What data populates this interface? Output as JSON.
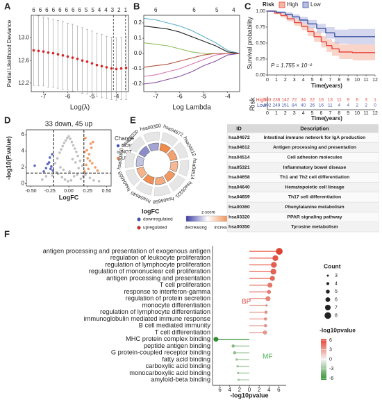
{
  "chart_data": [
    {
      "panel": "A",
      "type": "errorbar_line",
      "xlabel": "Log(λ)",
      "ylabel": "Partial Likelihood Deviance",
      "xlim": [
        -7.5,
        -3.5
      ],
      "xticks": [
        -7,
        -6,
        -5,
        -4
      ],
      "ylim": [
        12.05,
        13.4
      ],
      "yticks": [
        12.2,
        12.6,
        {
          "value": 13,
          "label": "13.0"
        }
      ],
      "top_ticks": {
        "x": [
          -7.4,
          -7.13,
          -6.86,
          -6.59,
          -6.32,
          -6.05,
          -5.78,
          -5.51,
          -5.24,
          -4.97,
          -4.7,
          -4.43,
          -4.16,
          -3.89,
          -3.62
        ],
        "labels": [
          6,
          6,
          6,
          6,
          6,
          6,
          6,
          6,
          5,
          5,
          4,
          4,
          3,
          2,
          1
        ]
      },
      "vlines": [
        -4.12,
        -3.62
      ],
      "x": [
        -7.4,
        -7.2,
        -7.0,
        -6.8,
        -6.6,
        -6.4,
        -6.2,
        -6.0,
        -5.8,
        -5.6,
        -5.4,
        -5.2,
        -5.0,
        -4.8,
        -4.6,
        -4.4,
        -4.2,
        -4.0,
        -3.8,
        -3.6
      ],
      "values": [
        12.78,
        12.77,
        12.76,
        12.74,
        12.73,
        12.71,
        12.69,
        12.67,
        12.65,
        12.63,
        12.6,
        12.58,
        12.55,
        12.52,
        12.5,
        12.48,
        12.46,
        12.45,
        12.46,
        12.47
      ],
      "errors": [
        0.62,
        0.62,
        0.61,
        0.61,
        0.6,
        0.6,
        0.6,
        0.59,
        0.59,
        0.58,
        0.58,
        0.57,
        0.57,
        0.56,
        0.56,
        0.55,
        0.55,
        0.55,
        0.55,
        0.56
      ],
      "color": "#d62728"
    },
    {
      "panel": "B",
      "type": "line",
      "xlabel": "Log Lambda",
      "xlim": [
        -7.5,
        -3.5
      ],
      "xticks": [
        -7,
        -6,
        -5,
        -4
      ],
      "ylim": [
        -0.25,
        0.25
      ],
      "yticks": [
        -0.2,
        -0.1,
        {
          "value": 0,
          "label": "0.0"
        },
        0.1,
        0.2
      ],
      "top_ticks": {
        "x": [
          -7,
          -5.4,
          -4.45,
          -3.75
        ],
        "labels": [
          6,
          6,
          5,
          4
        ]
      },
      "x": [
        -7.5,
        -7,
        -6.5,
        -6,
        -5.5,
        -5,
        -4.5,
        -4,
        -3.5
      ],
      "series": [
        {
          "color": "#5fb0c8",
          "values": [
            0.23,
            0.22,
            0.2,
            0.18,
            0.15,
            0.11,
            0.07,
            0.02,
            0
          ]
        },
        {
          "color": "#222222",
          "values": [
            0.18,
            0.17,
            0.16,
            0.14,
            0.11,
            0.08,
            0.05,
            0.01,
            0
          ]
        },
        {
          "color": "#8fbf5a",
          "values": [
            0.07,
            0.06,
            0.05,
            0.03,
            0.01,
            0,
            0,
            0,
            0
          ]
        },
        {
          "color": "#8a4fa0",
          "values": [
            -0.2,
            -0.19,
            -0.17,
            -0.15,
            -0.12,
            -0.08,
            -0.05,
            -0.01,
            0
          ]
        },
        {
          "color": "#d677b0",
          "values": [
            -0.15,
            -0.14,
            -0.12,
            -0.1,
            -0.07,
            -0.04,
            -0.01,
            0,
            0
          ]
        },
        {
          "color": "#b5533c",
          "values": [
            -0.09,
            -0.08,
            -0.07,
            -0.05,
            -0.03,
            -0.01,
            0,
            0,
            0
          ]
        }
      ]
    },
    {
      "panel": "C",
      "type": "survival",
      "legend_title": "Risk",
      "ylabel": "Survival probability",
      "xlabel": "Time(years)",
      "xlim": [
        0,
        12
      ],
      "xticks": [
        0,
        1,
        2,
        3,
        4,
        5,
        6,
        7,
        8,
        9,
        10,
        11,
        12
      ],
      "ylim": [
        0,
        1
      ],
      "yticks": [
        {
          "value": 0,
          "label": "0.00"
        },
        {
          "value": 0.25,
          "label": "0.25"
        },
        {
          "value": 0.5,
          "label": "0.50"
        },
        {
          "value": 0.75,
          "label": "0.75"
        },
        {
          "value": 1,
          "label": "1.00"
        }
      ],
      "annotation": "P = 1.755 × 10⁻²",
      "series": [
        {
          "name": "High",
          "color": "#e8453c",
          "band_color": "#f5b8a5",
          "x": [
            0,
            0.8,
            1.5,
            2.2,
            3,
            3.8,
            4.5,
            5.2,
            6,
            6.6,
            7.2,
            8,
            9.5
          ],
          "values": [
            1,
            0.97,
            0.93,
            0.88,
            0.82,
            0.76,
            0.68,
            0.6,
            0.52,
            0.46,
            0.41,
            0.36,
            0.35
          ],
          "lower": [
            1,
            0.95,
            0.9,
            0.84,
            0.77,
            0.7,
            0.61,
            0.52,
            0.43,
            0.36,
            0.3,
            0.25,
            0.23
          ],
          "upper": [
            1,
            0.99,
            0.96,
            0.92,
            0.87,
            0.82,
            0.75,
            0.68,
            0.61,
            0.56,
            0.52,
            0.48,
            0.48
          ]
        },
        {
          "name": "Low",
          "color": "#3b53a3",
          "band_color": "#b7bde3",
          "x": [
            0,
            1,
            2,
            2.8,
            3.6,
            4.5,
            5.5,
            6.5,
            7.5,
            9
          ],
          "values": [
            1,
            0.98,
            0.95,
            0.91,
            0.86,
            0.8,
            0.73,
            0.66,
            0.6,
            0.6
          ],
          "lower": [
            1,
            0.96,
            0.92,
            0.87,
            0.81,
            0.74,
            0.66,
            0.57,
            0.49,
            0.48
          ],
          "upper": [
            1,
            1,
            0.98,
            0.95,
            0.91,
            0.86,
            0.8,
            0.75,
            0.71,
            0.72
          ]
        }
      ],
      "risk_table": {
        "title": "Risk",
        "xlabel": "Time(years)",
        "rows": [
          {
            "name": "High",
            "values": [
              303,
              236,
              142,
              72,
              34,
              22,
              16,
              13,
              11,
              9,
              6,
              3,
              1
            ]
          },
          {
            "name": "Low",
            "values": [
              302,
              249,
              151,
              84,
              40,
              26,
              16,
              11,
              4,
              4,
              2,
              2,
              0
            ]
          }
        ]
      }
    },
    {
      "panel": "D",
      "type": "scatter",
      "title": "33 down, 45 up",
      "xlabel": "LogFC",
      "ylabel": "-log10(P.value)",
      "xlim": [
        -0.56,
        0.56
      ],
      "xticks": [
        {
          "value": -0.5,
          "label": "-0.50"
        },
        {
          "value": -0.25,
          "label": "-0.25"
        },
        {
          "value": 0,
          "label": "0.00"
        },
        {
          "value": 0.25,
          "label": "0.25"
        },
        {
          "value": 0.5,
          "label": "0.50"
        }
      ],
      "ylim": [
        -0.3,
        6.6
      ],
      "yticks": [
        0,
        2,
        4,
        6
      ],
      "thresholds": {
        "x": [
          -0.2,
          0.2
        ],
        "y": 1.3
      },
      "legend_title": "Change",
      "series": [
        {
          "name": "DOWN",
          "color": "#3f51b5",
          "x": [
            -0.21,
            -0.23,
            -0.26,
            -0.3,
            -0.25,
            -0.22,
            -0.33,
            -0.28,
            -0.45,
            -0.24
          ],
          "values": [
            1.6,
            2.1,
            2.6,
            1.9,
            3.2,
            3.6,
            1.5,
            2.4,
            2.2,
            1.8
          ]
        },
        {
          "name": "NOT",
          "color": "#b5b5b5",
          "x": [
            -0.18,
            -0.15,
            -0.12,
            -0.1,
            -0.08,
            -0.06,
            -0.04,
            -0.02,
            0,
            0.02,
            0.04,
            0.06,
            0.08,
            0.1,
            0.12,
            0.15,
            0.18,
            -0.14,
            -0.09,
            -0.05,
            -0.01,
            0.03,
            0.07,
            0.11,
            0.16,
            -0.3,
            -0.35,
            0.28,
            0.33,
            0.4,
            -0.22,
            0.22,
            -0.11,
            0.05,
            0.09,
            -0.07,
            0.01,
            0.13,
            -0.16,
            0.19
          ],
          "values": [
            2.5,
            3.1,
            3.8,
            4.2,
            4.6,
            5.0,
            5.3,
            5.6,
            5.8,
            5.5,
            5.1,
            4.7,
            4.3,
            3.9,
            3.4,
            2.8,
            2.2,
            1.2,
            0.8,
            0.5,
            0.3,
            0.4,
            0.9,
            1.1,
            0.6,
            0.9,
            0.5,
            0.7,
            0.4,
            0.3,
            1.0,
            1.1,
            2.0,
            3.0,
            2.6,
            1.7,
            1.5,
            1.9,
            1.4,
            0.9
          ]
        },
        {
          "name": "UP",
          "color": "#f08a4b",
          "x": [
            0.21,
            0.23,
            0.25,
            0.27,
            0.3,
            0.32,
            0.22,
            0.24,
            0.28,
            0.35,
            0.26,
            0.38,
            0.21,
            0.29,
            0.31
          ],
          "values": [
            1.5,
            2.3,
            3.1,
            3.6,
            4.4,
            5.1,
            5.6,
            4.1,
            2.8,
            2.0,
            1.8,
            1.6,
            3.9,
            4.9,
            2.5
          ]
        }
      ]
    },
    {
      "panel": "F",
      "type": "lollipop",
      "xlabel": "-log10pvalue",
      "categories": [
        "antigen processing and presentation of exogenous antigen",
        "regulation of leukocyte proliferation",
        "regulation of lymphocyte proliferation",
        "regulation of mononuclear cell proliferation",
        "antigen processing and presentation",
        "T cell proliferation",
        "response to interferon-gamma",
        "regulation of protein secretion",
        "monocyte differentiation",
        "regulation of lymphocyte differentiation",
        "immunoglobulin mediated immune response",
        "B cell mediated immunity",
        "T cell differentiation",
        "MHC protein complex binding",
        "peptide antigen binding",
        "G protein-coupled receptor binding",
        "fatty acid binding",
        "carboxylic acid binding",
        "monocarboxylic acid binding",
        "amyloid-beta binding"
      ],
      "values": [
        6.1,
        5.3,
        5.0,
        4.9,
        4.7,
        4.2,
        4.0,
        3.8,
        3.5,
        3.4,
        3.3,
        3.3,
        3.2,
        -6.8,
        -3.3,
        -3.0,
        -2.6,
        -2.4,
        -2.3,
        -2.2
      ],
      "counts": [
        8,
        7,
        7,
        7,
        6,
        6,
        5,
        6,
        3,
        4,
        4,
        4,
        5,
        6,
        4,
        4,
        3,
        3,
        3,
        3
      ],
      "xlim": [
        -7.5,
        7.5
      ],
      "xticks": [
        {
          "value": -6,
          "label": "6"
        },
        {
          "value": -4,
          "label": "4"
        },
        {
          "value": -2,
          "label": "2"
        },
        0,
        2,
        4,
        6
      ],
      "groups": [
        {
          "text": "BP",
          "color": "#d9534f"
        },
        {
          "text": "MF",
          "color": "#4caf50"
        }
      ],
      "size_legend": {
        "title": "Count",
        "values": [
          3,
          4,
          5,
          6,
          7,
          8
        ]
      },
      "color_legend": {
        "title": "-log10pvalue",
        "ticks": [
          6,
          3,
          0,
          -3,
          -6
        ],
        "colors": [
          "#e3412f",
          "#f4f4f4",
          "#2f8f2f"
        ]
      }
    }
  ],
  "enrichment": {
    "panel": "E",
    "ids": [
      "hsa00350",
      "hsa04672",
      "hsa04612",
      "hsa04514",
      "hsa05321",
      "hsa04658",
      "hsa04640",
      "hsa04659",
      "hsa00360",
      "hsa03320"
    ],
    "zscores": [
      -1.2,
      2.5,
      2.0,
      1.5,
      2.2,
      1.8,
      2.4,
      1.6,
      -0.8,
      -1.5
    ],
    "z_colors": [
      "#3f3fa6",
      "#ffffff",
      "#f08a4b"
    ],
    "legend": {
      "title": "logFC",
      "down": "downregulated",
      "up": "upregulated",
      "z_title": "z-score",
      "z_low": "decreasing",
      "z_high": "increasing"
    },
    "table": {
      "header": [
        "ID",
        "Description"
      ],
      "rows": [
        [
          "hsa04672",
          "Intestinal immune network for IgA production"
        ],
        [
          "hsa04612",
          "Antigen processing and presentation"
        ],
        [
          "hsa04514",
          "Cell adhesion molecules"
        ],
        [
          "hsa05321",
          "Inflammatory bowel disease"
        ],
        [
          "hsa04658",
          "Th1 and Th2 cell differentiation"
        ],
        [
          "hsa04640",
          "Hematopoietic cell lineage"
        ],
        [
          "hsa04659",
          "Th17 cell differentiation"
        ],
        [
          "hsa00360",
          "Phenylalanine metabolism"
        ],
        [
          "hsa03320",
          "PPAR signaling pathway"
        ],
        [
          "hsa00350",
          "Tyrosine metabolism"
        ]
      ]
    }
  }
}
